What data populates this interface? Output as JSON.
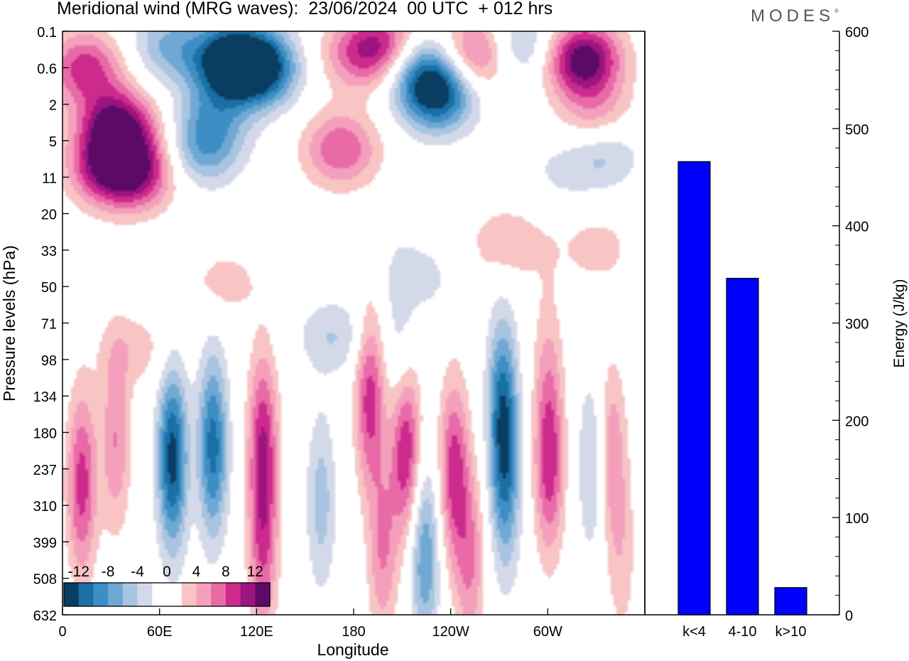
{
  "title": "Meridional wind (MRG waves):  23/06/2024  00 UTC  + 012 hrs",
  "logo": "MODES",
  "chart_data": [
    {
      "type": "heatmap",
      "title": "Meridional wind (MRG waves):  23/06/2024  00 UTC  + 012 hrs",
      "xlabel": "Longitude",
      "ylabel": "Pressure levels (hPa)",
      "x_ticks": [
        "0",
        "60E",
        "120E",
        "180",
        "120W",
        "60W"
      ],
      "x_tick_degrees": [
        0,
        60,
        120,
        180,
        240,
        300
      ],
      "x_range_degrees": [
        0,
        360
      ],
      "y_ticks": [
        "0.1",
        "0.6",
        "2",
        "5",
        "11",
        "20",
        "33",
        "50",
        "71",
        "98",
        "134",
        "180",
        "237",
        "310",
        "399",
        "508",
        "632"
      ],
      "colorbar": {
        "labels": [
          "-12",
          "-8",
          "-4",
          "0",
          "4",
          "8",
          "12"
        ],
        "colors": [
          "#0a3d62",
          "#1a6fa5",
          "#3c8ec4",
          "#6fa8d3",
          "#a8c4e0",
          "#d4d9ea",
          "#ffffff",
          "#ffffff",
          "#f8c4c4",
          "#f4a0bc",
          "#e86aa6",
          "#cc2a8c",
          "#9c1480",
          "#5c0a66"
        ],
        "range": [
          -14,
          14
        ]
      },
      "blobs": [
        {
          "lon": 14,
          "lev": 0.6,
          "v": 9
        },
        {
          "lon": 34,
          "lev": 3.5,
          "v": 13
        },
        {
          "lon": 26,
          "lev": 9,
          "v": 9
        },
        {
          "lon": 46,
          "lev": 10,
          "v": 10
        },
        {
          "lon": 65,
          "lev": 0.2,
          "v": -6
        },
        {
          "lon": 102,
          "lev": 0.4,
          "v": -13
        },
        {
          "lon": 122,
          "lev": 0.6,
          "v": -14
        },
        {
          "lon": 94,
          "lev": 2.5,
          "v": -5
        },
        {
          "lon": 88,
          "lev": 6,
          "v": -7
        },
        {
          "lon": 172,
          "lev": 6,
          "v": 8
        },
        {
          "lon": 182,
          "lev": 0.3,
          "v": 6
        },
        {
          "lon": 200,
          "lev": 0.2,
          "v": 8
        },
        {
          "lon": 232,
          "lev": 1.5,
          "v": -12
        },
        {
          "lon": 222,
          "lev": 0.6,
          "v": -8
        },
        {
          "lon": 256,
          "lev": 0.3,
          "v": 9
        },
        {
          "lon": 282,
          "lev": 0.2,
          "v": -6
        },
        {
          "lon": 322,
          "lev": 0.4,
          "v": 14
        },
        {
          "lon": 330,
          "lev": 3,
          "v": 6
        },
        {
          "lon": 334,
          "lev": 6,
          "v": -6
        },
        {
          "lon": 306,
          "lev": 10,
          "v": -2
        },
        {
          "lon": 275,
          "lev": 30,
          "v": 4
        },
        {
          "lon": 330,
          "lev": 32,
          "v": 3
        },
        {
          "lon": 220,
          "lev": 45,
          "v": -3
        },
        {
          "lon": 100,
          "lev": 48,
          "v": 3
        },
        {
          "lon": 168,
          "lev": 80,
          "v": -4
        },
        {
          "lon": 210,
          "lev": 105,
          "v": -5
        },
        {
          "lon": 45,
          "lev": 90,
          "v": 3
        },
        {
          "lon": 272,
          "lev": 145,
          "v": -10
        },
        {
          "lon": 300,
          "lev": 100,
          "v": 3
        },
        {
          "lon": 12,
          "lev": 265,
          "v": 9
        },
        {
          "lon": 33,
          "lev": 190,
          "v": 6
        },
        {
          "lon": 68,
          "lev": 220,
          "v": -13
        },
        {
          "lon": 93,
          "lev": 200,
          "v": -11
        },
        {
          "lon": 124,
          "lev": 190,
          "v": 9
        },
        {
          "lon": 124,
          "lev": 420,
          "v": 7
        },
        {
          "lon": 160,
          "lev": 300,
          "v": -5
        },
        {
          "lon": 190,
          "lev": 135,
          "v": 9
        },
        {
          "lon": 212,
          "lev": 190,
          "v": 12
        },
        {
          "lon": 198,
          "lev": 420,
          "v": 6
        },
        {
          "lon": 224,
          "lev": 440,
          "v": -8
        },
        {
          "lon": 242,
          "lev": 240,
          "v": 9
        },
        {
          "lon": 252,
          "lev": 450,
          "v": 6
        },
        {
          "lon": 274,
          "lev": 280,
          "v": -7
        },
        {
          "lon": 301,
          "lev": 230,
          "v": 9
        },
        {
          "lon": 328,
          "lev": 230,
          "v": -5
        },
        {
          "lon": 339,
          "lev": 210,
          "v": 6
        },
        {
          "lon": 346,
          "lev": 440,
          "v": 3
        }
      ]
    },
    {
      "type": "bar",
      "categories": [
        "k<4",
        "4-10",
        "k>10"
      ],
      "values": [
        466,
        346,
        28
      ],
      "ylabel": "Energy (J/kg)",
      "ylim": [
        0,
        600
      ],
      "y_ticks": [
        "0",
        "100",
        "200",
        "300",
        "400",
        "500",
        "600"
      ],
      "bar_color": "#0000ff"
    }
  ]
}
